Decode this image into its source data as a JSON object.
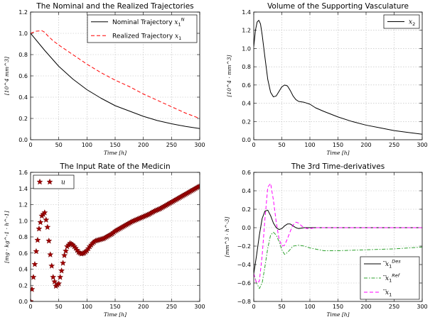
{
  "chart_data": [
    {
      "type": "line",
      "title": "The Nominal and the Realized Trajectories",
      "xlabel": "Time [h]",
      "ylabel": "[10^4 mm^3]",
      "xlim": [
        0,
        300
      ],
      "ylim": [
        0.0,
        1.2
      ],
      "xticks": [
        "0",
        "50",
        "100",
        "150",
        "200",
        "250",
        "300"
      ],
      "yticks": [
        "0.0",
        "0.2",
        "0.4",
        "0.6",
        "0.8",
        "1.0",
        "1.2"
      ],
      "grid": true,
      "legend": "top-right",
      "series": [
        {
          "name": "Nominal Trajectory x1^N",
          "color": "#000000",
          "style": "solid",
          "x": [
            0,
            25,
            50,
            75,
            100,
            125,
            150,
            175,
            200,
            225,
            250,
            275,
            300
          ],
          "y": [
            1.0,
            0.84,
            0.69,
            0.57,
            0.47,
            0.39,
            0.32,
            0.27,
            0.22,
            0.18,
            0.15,
            0.125,
            0.105
          ]
        },
        {
          "name": "Realized Trajectory x1",
          "color": "#ff0000",
          "style": "dashed",
          "x": [
            0,
            10,
            20,
            25,
            30,
            40,
            50,
            75,
            100,
            125,
            150,
            175,
            200,
            225,
            250,
            275,
            300
          ],
          "y": [
            1.0,
            1.02,
            1.025,
            1.01,
            0.98,
            0.93,
            0.89,
            0.8,
            0.71,
            0.63,
            0.56,
            0.5,
            0.43,
            0.37,
            0.31,
            0.25,
            0.2
          ]
        }
      ]
    },
    {
      "type": "line",
      "title": "Volume of the Supporting Vasculature",
      "xlabel": "Time [h]",
      "ylabel": "[10^4 · mm^3]",
      "xlim": [
        0,
        300
      ],
      "ylim": [
        0.0,
        1.4
      ],
      "xticks": [
        "0",
        "50",
        "100",
        "150",
        "200",
        "250",
        "300"
      ],
      "yticks": [
        "0.0",
        "0.2",
        "0.4",
        "0.6",
        "0.8",
        "1.0",
        "1.2",
        "1.4"
      ],
      "grid": true,
      "legend": "top-right",
      "series": [
        {
          "name": "x2",
          "color": "#000000",
          "style": "solid",
          "x": [
            0,
            3,
            6,
            9,
            12,
            15,
            20,
            25,
            30,
            35,
            40,
            45,
            50,
            55,
            60,
            65,
            70,
            75,
            80,
            90,
            100,
            110,
            125,
            150,
            175,
            200,
            225,
            250,
            275,
            300
          ],
          "y": [
            1.02,
            1.2,
            1.29,
            1.31,
            1.27,
            1.15,
            0.9,
            0.66,
            0.52,
            0.47,
            0.48,
            0.53,
            0.58,
            0.6,
            0.59,
            0.54,
            0.48,
            0.44,
            0.42,
            0.41,
            0.39,
            0.35,
            0.31,
            0.25,
            0.2,
            0.16,
            0.13,
            0.1,
            0.08,
            0.06
          ]
        }
      ]
    },
    {
      "type": "line",
      "title": "The Input Rate of the Medicin",
      "xlabel": "Time [h]",
      "ylabel": "[mg · kg^-1 · h^-1]",
      "xlim": [
        0,
        300
      ],
      "ylim": [
        0.0,
        1.6
      ],
      "xticks": [
        "0",
        "50",
        "100",
        "150",
        "200",
        "250",
        "300"
      ],
      "yticks": [
        "0.0",
        "0.2",
        "0.4",
        "0.6",
        "0.8",
        "1.0",
        "1.2",
        "1.4",
        "1.6"
      ],
      "grid": true,
      "legend": "top-left",
      "series": [
        {
          "name": "u",
          "color": "#a00000",
          "style": "star-markers",
          "x": [
            0,
            5,
            10,
            15,
            20,
            25,
            30,
            35,
            40,
            45,
            50,
            55,
            60,
            65,
            70,
            75,
            80,
            85,
            90,
            95,
            100,
            105,
            110,
            115,
            120,
            125,
            130,
            135,
            140,
            145,
            150,
            160,
            170,
            180,
            190,
            200,
            210,
            220,
            230,
            240,
            250,
            260,
            270,
            280,
            290,
            300
          ],
          "y": [
            0.0,
            0.3,
            0.62,
            0.9,
            1.06,
            1.1,
            0.92,
            0.58,
            0.3,
            0.19,
            0.22,
            0.38,
            0.57,
            0.68,
            0.72,
            0.7,
            0.66,
            0.61,
            0.59,
            0.6,
            0.63,
            0.68,
            0.72,
            0.75,
            0.76,
            0.77,
            0.78,
            0.8,
            0.82,
            0.84,
            0.87,
            0.91,
            0.95,
            0.99,
            1.02,
            1.05,
            1.08,
            1.12,
            1.15,
            1.19,
            1.23,
            1.27,
            1.31,
            1.35,
            1.39,
            1.43
          ]
        }
      ]
    },
    {
      "type": "line",
      "title": "The 3rd Time-derivatives",
      "xlabel": "Time [h]",
      "ylabel": "[mm^3 · h^-3]",
      "xlim": [
        0,
        300
      ],
      "ylim": [
        -0.8,
        0.6
      ],
      "xticks": [
        "0",
        "50",
        "100",
        "150",
        "200",
        "250",
        "300"
      ],
      "yticks": [
        "−0.8",
        "−0.6",
        "−0.4",
        "−0.2",
        "0.0",
        "0.2",
        "0.4",
        "0.6"
      ],
      "grid": true,
      "legend": "bottom-right",
      "series": [
        {
          "name": "x1^Des",
          "color": "#000000",
          "style": "solid",
          "x": [
            0,
            5,
            10,
            15,
            20,
            25,
            30,
            35,
            40,
            45,
            50,
            55,
            60,
            65,
            70,
            75,
            80,
            90,
            100,
            125,
            150,
            200,
            250,
            300
          ],
          "y": [
            -0.5,
            -0.3,
            -0.08,
            0.1,
            0.18,
            0.19,
            0.13,
            0.05,
            0.0,
            -0.02,
            -0.01,
            0.02,
            0.04,
            0.04,
            0.02,
            0.0,
            -0.01,
            0.0,
            0.0,
            0.0,
            0.0,
            0.0,
            0.0,
            0.0
          ]
        },
        {
          "name": "x1^Ref",
          "color": "#2ca02c",
          "style": "dashdot",
          "x": [
            0,
            5,
            10,
            15,
            20,
            25,
            30,
            35,
            40,
            45,
            50,
            55,
            60,
            70,
            80,
            90,
            100,
            125,
            150,
            200,
            250,
            300
          ],
          "y": [
            -0.5,
            -0.6,
            -0.66,
            -0.6,
            -0.42,
            -0.22,
            -0.08,
            -0.05,
            -0.08,
            -0.15,
            -0.24,
            -0.29,
            -0.27,
            -0.2,
            -0.19,
            -0.2,
            -0.22,
            -0.25,
            -0.25,
            -0.24,
            -0.23,
            -0.21
          ]
        },
        {
          "name": "x1",
          "color": "#ff00ff",
          "style": "dashed",
          "x": [
            0,
            5,
            10,
            15,
            20,
            25,
            30,
            35,
            40,
            45,
            50,
            55,
            60,
            65,
            70,
            75,
            80,
            85,
            90,
            95,
            100,
            110,
            125,
            150,
            200,
            250,
            300
          ],
          "y": [
            -0.5,
            -0.6,
            -0.58,
            -0.3,
            0.1,
            0.44,
            0.48,
            0.3,
            0.06,
            -0.12,
            -0.2,
            -0.19,
            -0.12,
            -0.04,
            0.03,
            0.06,
            0.05,
            0.02,
            0.0,
            -0.01,
            -0.01,
            0.0,
            0.0,
            0.0,
            0.0,
            0.0,
            0.0
          ]
        }
      ]
    }
  ]
}
